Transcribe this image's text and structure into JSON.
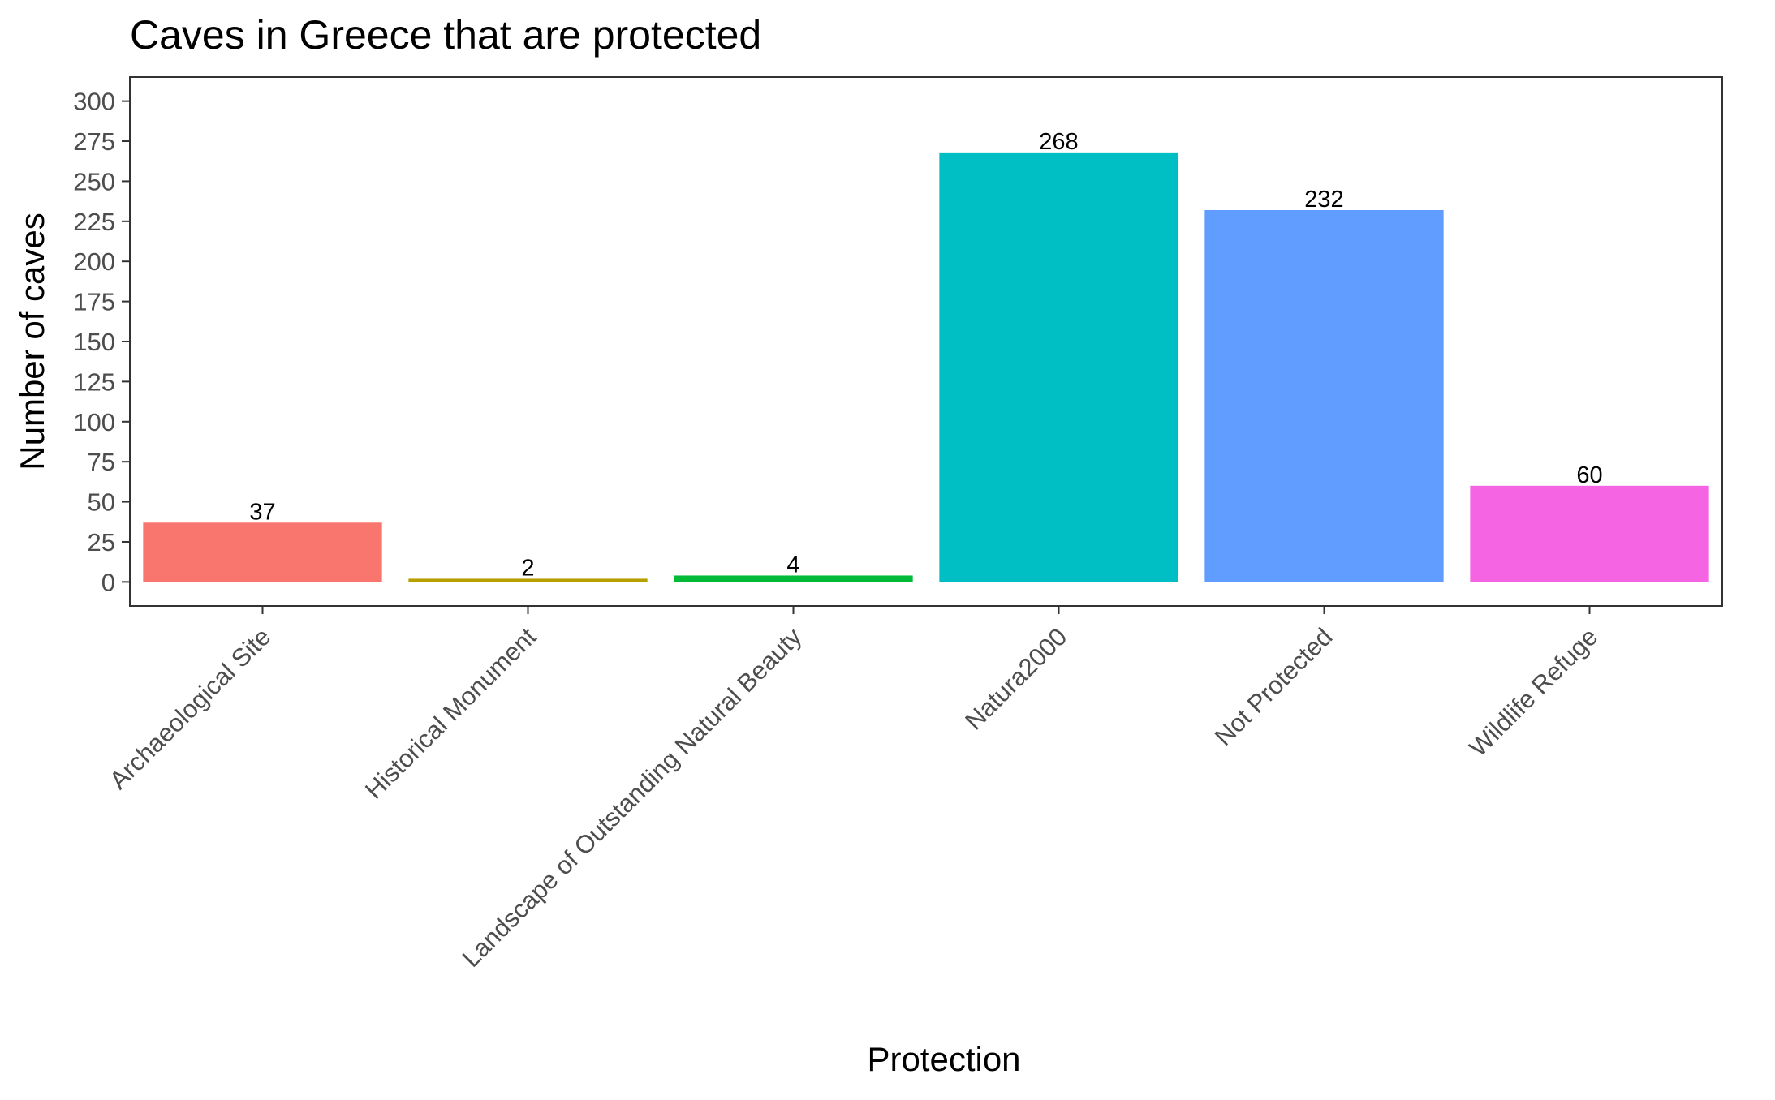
{
  "chart_data": {
    "type": "bar",
    "title": "Caves in Greece that are protected",
    "xlabel": "Protection",
    "ylabel": "Number of caves",
    "categories": [
      "Archaeological Site",
      "Historical Monument",
      "Landscape of Outstanding Natural Beauty",
      "Natura2000",
      "Not Protected",
      "Wildlife Refuge"
    ],
    "values": [
      37,
      2,
      4,
      268,
      232,
      60
    ],
    "colors": [
      "#F8766D",
      "#B79F00",
      "#00BA38",
      "#00BFC4",
      "#619CFF",
      "#F564E3"
    ],
    "data_labels": [
      "37",
      "2",
      "4",
      "268",
      "232",
      "60"
    ],
    "ylim": [
      -15,
      315
    ],
    "yticks": [
      0,
      25,
      50,
      75,
      100,
      125,
      150,
      175,
      200,
      225,
      250,
      275,
      300
    ],
    "ytick_labels": [
      "0",
      "25",
      "50",
      "75",
      "100",
      "125",
      "150",
      "175",
      "200",
      "225",
      "250",
      "275",
      "300"
    ],
    "grid": false,
    "legend": "none"
  }
}
